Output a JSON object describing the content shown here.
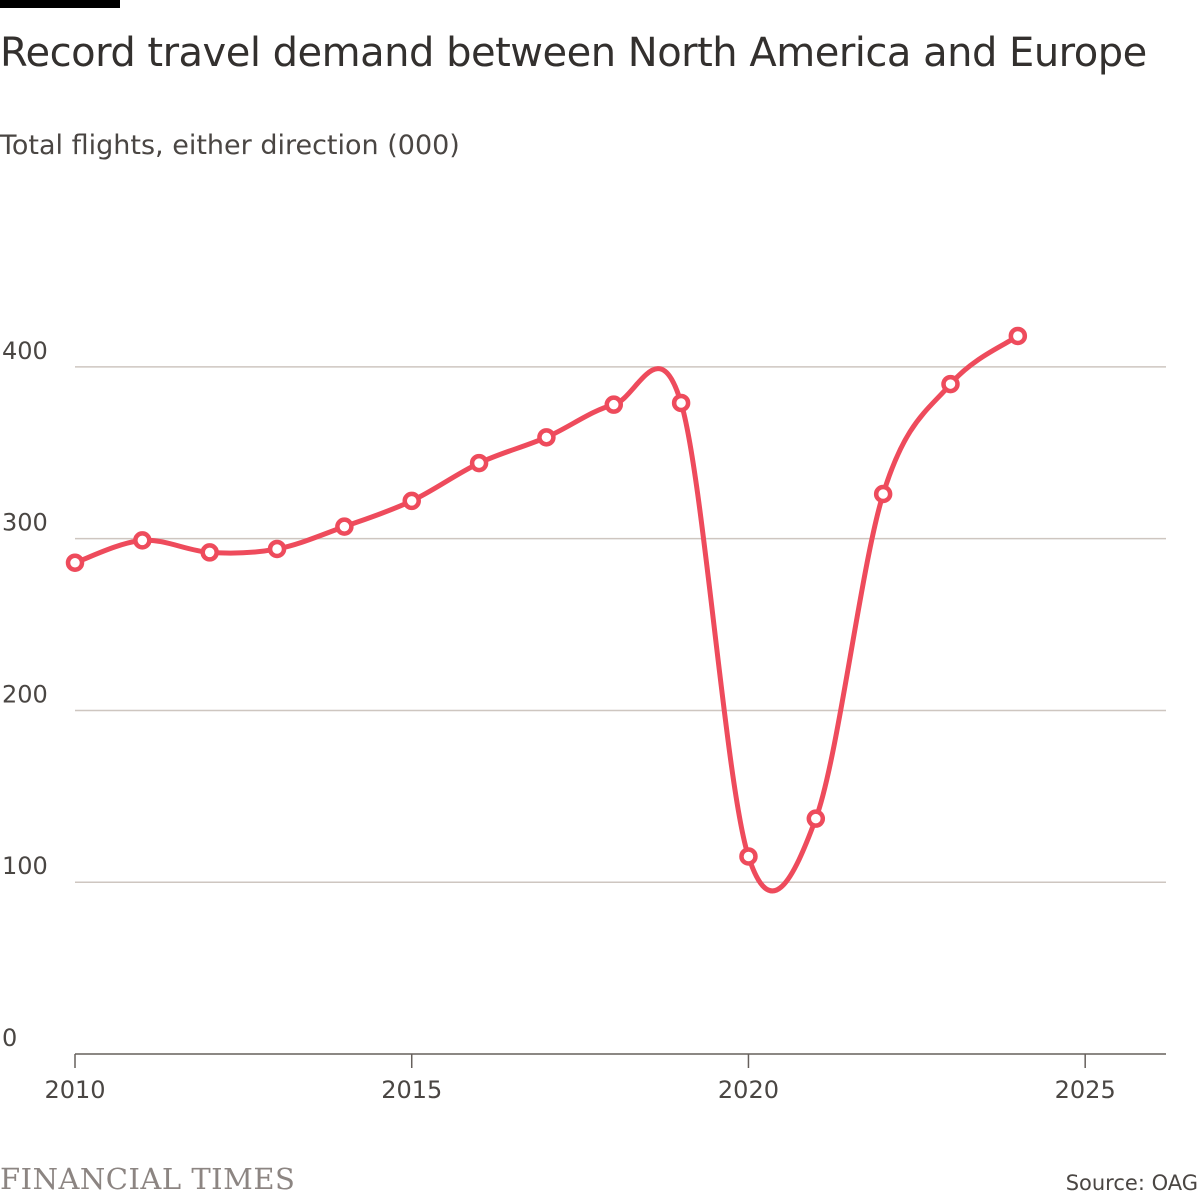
{
  "header": {
    "title": "Record travel demand between North America and Europe",
    "subtitle": "Total flights, either direction (000)"
  },
  "footer": {
    "logo_text": "FINANCIAL TIMES",
    "source": "Source: OAG"
  },
  "colors": {
    "line": "#ee4b5c",
    "grid": "#cec6c0",
    "axis": "#66605c",
    "marker_fill": "#ffffff"
  },
  "chart_data": {
    "type": "line",
    "title": "Record travel demand between North America and Europe",
    "subtitle": "Total flights, either direction (000)",
    "xlabel": "",
    "ylabel": "Total flights, either direction (000)",
    "xlim": [
      2010,
      2026.2
    ],
    "ylim": [
      0,
      450
    ],
    "x_ticks": [
      2010,
      2015,
      2020,
      2025
    ],
    "y_ticks": [
      0,
      100,
      200,
      300,
      400
    ],
    "grid": true,
    "legend": "none",
    "series": [
      {
        "name": "Total flights",
        "x": [
          2010,
          2011,
          2012,
          2013,
          2014,
          2015,
          2016,
          2017,
          2018,
          2019,
          2020,
          2021,
          2022,
          2023,
          2024
        ],
        "values": [
          286,
          299,
          292,
          294,
          307,
          322,
          344,
          359,
          378,
          379,
          115,
          137,
          326,
          390,
          418
        ]
      }
    ]
  }
}
